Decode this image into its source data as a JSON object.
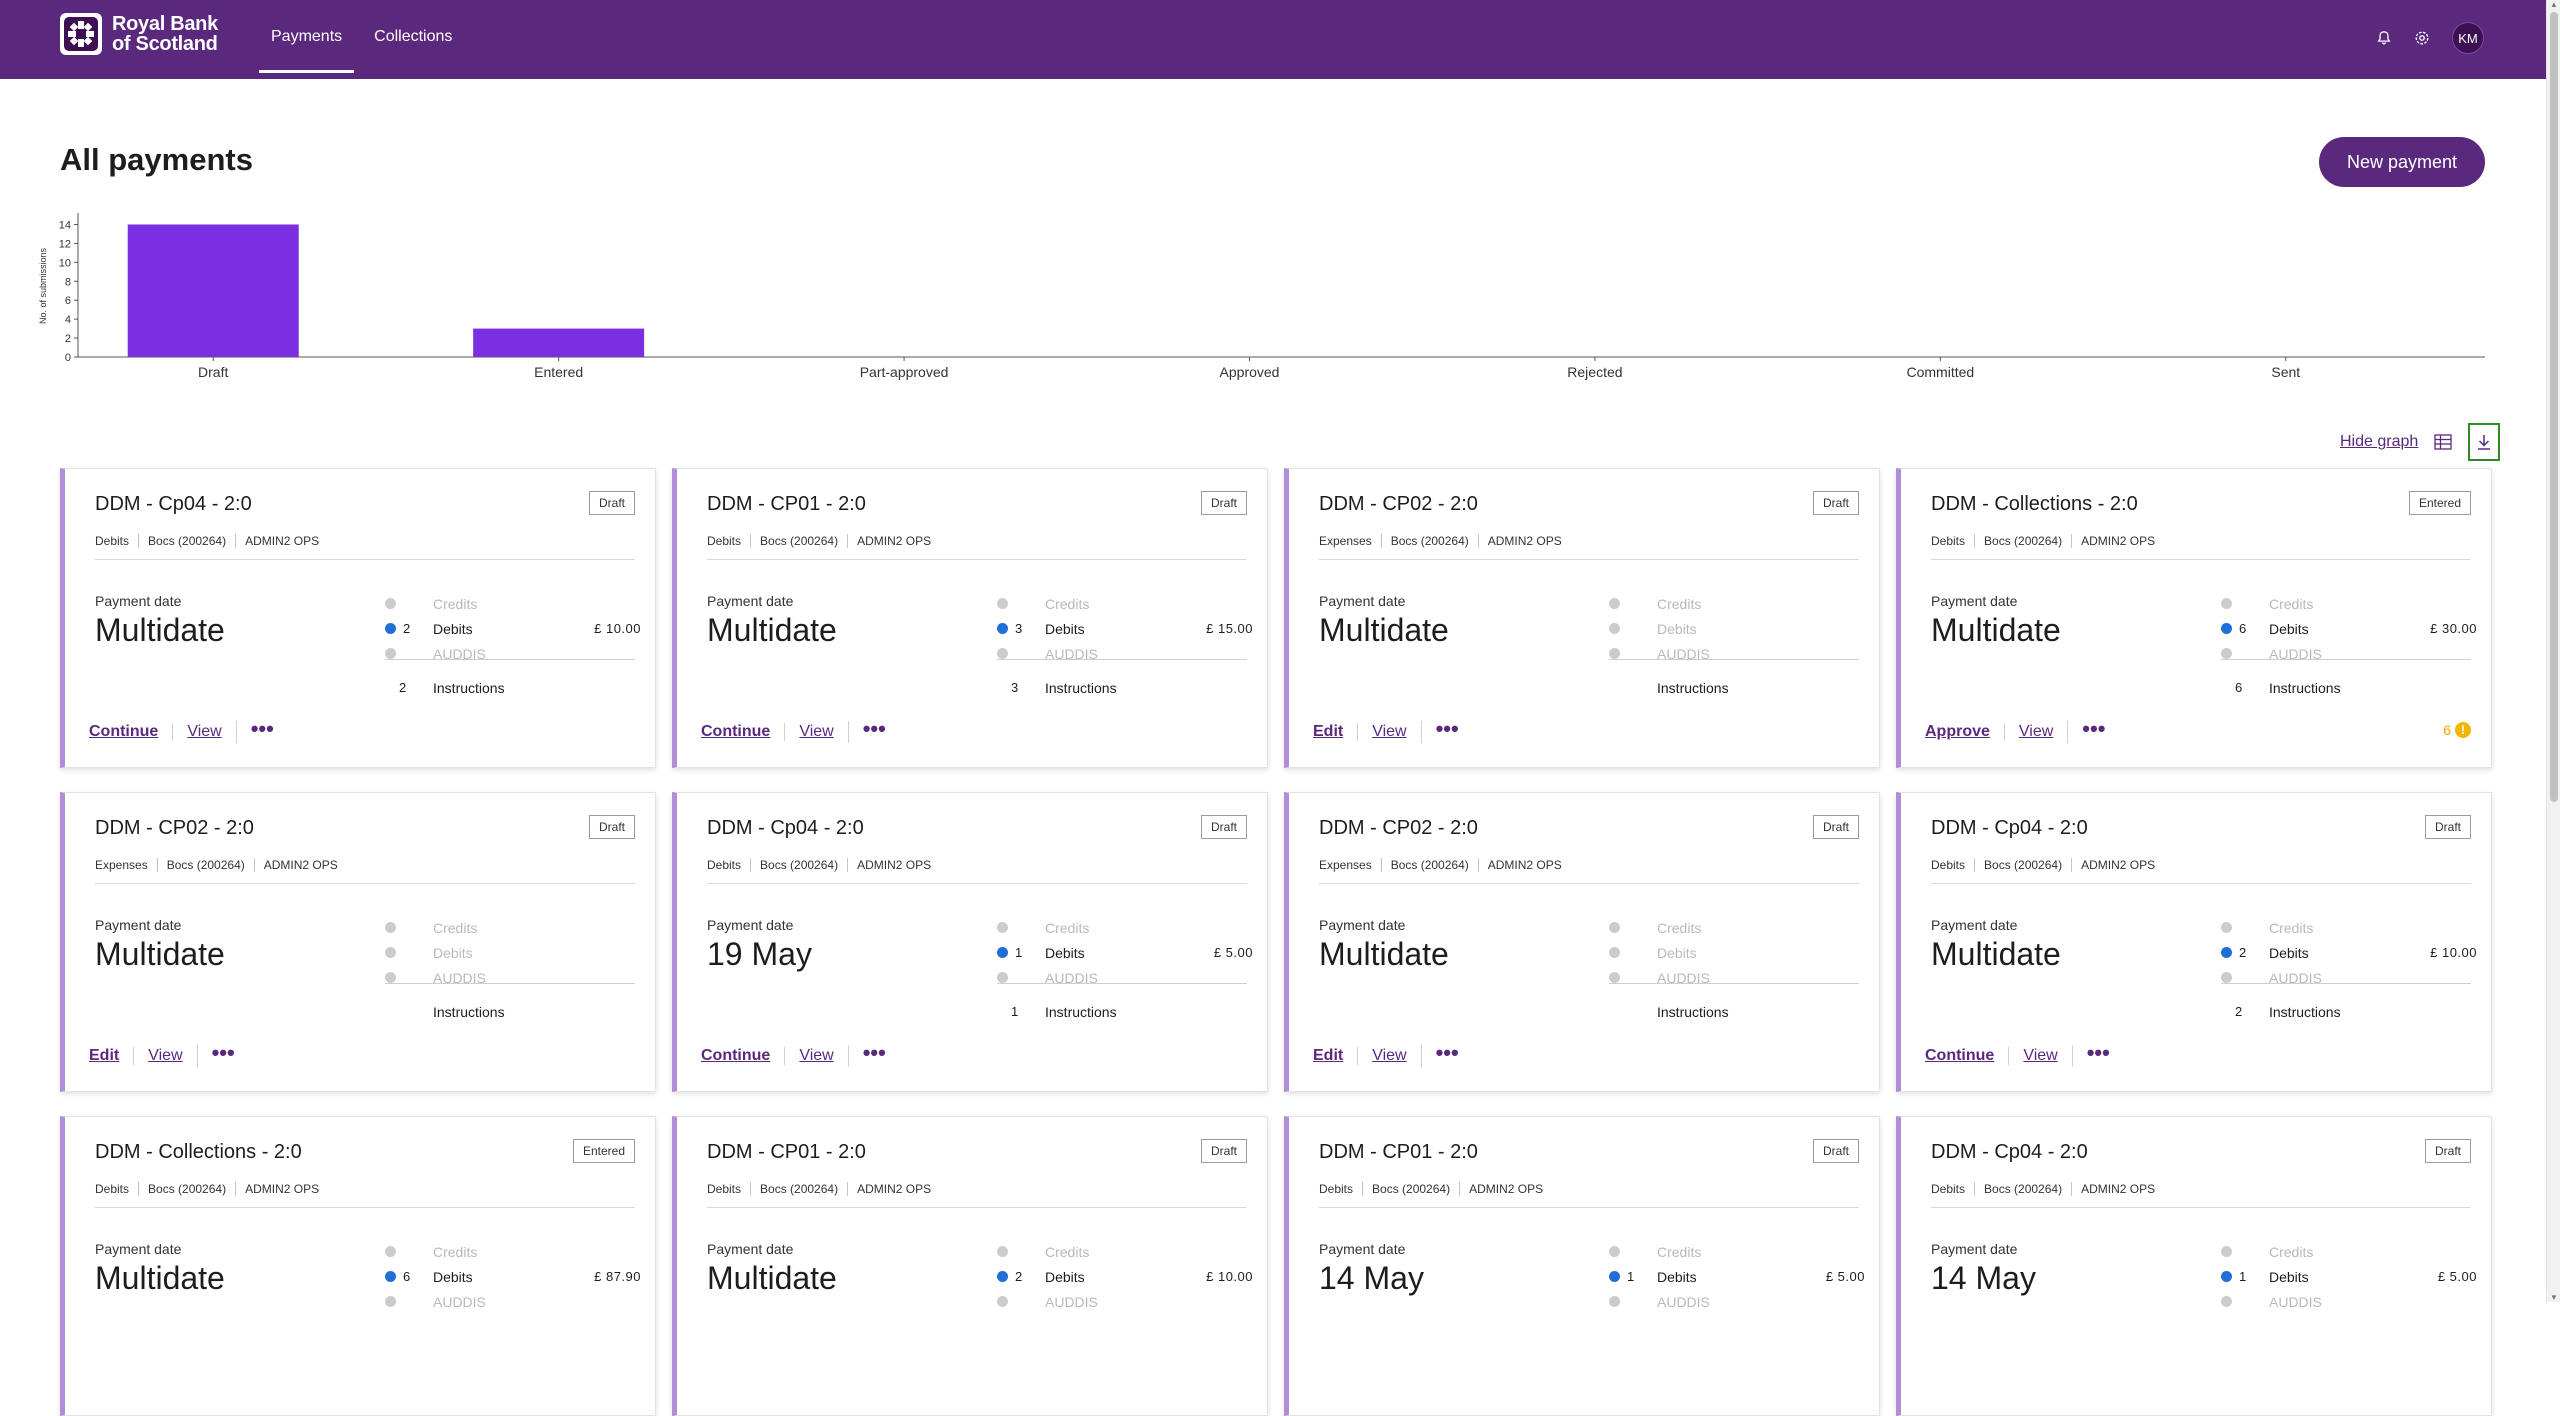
{
  "header": {
    "brand_line1": "Royal Bank",
    "brand_line2": "of Scotland",
    "nav": [
      {
        "label": "Payments"
      },
      {
        "label": "Collections"
      }
    ],
    "avatar_initials": "KM",
    "icons": [
      "bell-icon",
      "settings-icon"
    ]
  },
  "page": {
    "title": "All payments",
    "new_payment_label": "New payment",
    "hide_graph_label": "Hide graph"
  },
  "chart_data": {
    "type": "bar",
    "ylabel": "No. of submissions",
    "categories": [
      "Draft",
      "Entered",
      "Part-approved",
      "Approved",
      "Rejected",
      "Committed",
      "Sent"
    ],
    "values": [
      14,
      3,
      0,
      0,
      0,
      0,
      0
    ],
    "yticks": [
      0,
      2,
      4,
      6,
      8,
      10,
      12,
      14
    ],
    "ylim": [
      0,
      15
    ],
    "bar_color": "#7b2fe0",
    "grid": false
  },
  "labels": {
    "payment_date": "Payment date",
    "credits": "Credits",
    "debits": "Debits",
    "auddis": "AUDDIS",
    "instructions": "Instructions",
    "view": "View",
    "more": "•••"
  },
  "cards": [
    {
      "title": "DDM - Cp04 - 2:0",
      "status": "Draft",
      "type": "Debits",
      "service": "Bocs (200264)",
      "user": "ADMIN2 OPS",
      "date": "Multidate",
      "debits_count": "2",
      "debits_amount": "£ 10.00",
      "debits_on": true,
      "instructions": "2",
      "primary": "Continue",
      "warning": ""
    },
    {
      "title": "DDM - CP01 - 2:0",
      "status": "Draft",
      "type": "Debits",
      "service": "Bocs (200264)",
      "user": "ADMIN2 OPS",
      "date": "Multidate",
      "debits_count": "3",
      "debits_amount": "£ 15.00",
      "debits_on": true,
      "instructions": "3",
      "primary": "Continue",
      "warning": ""
    },
    {
      "title": "DDM - CP02 - 2:0",
      "status": "Draft",
      "type": "Expenses",
      "service": "Bocs (200264)",
      "user": "ADMIN2 OPS",
      "date": "Multidate",
      "debits_count": "",
      "debits_amount": "",
      "debits_on": false,
      "instructions": "",
      "primary": "Edit",
      "warning": ""
    },
    {
      "title": "DDM - Collections - 2:0",
      "status": "Entered",
      "type": "Debits",
      "service": "Bocs (200264)",
      "user": "ADMIN2 OPS",
      "date": "Multidate",
      "debits_count": "6",
      "debits_amount": "£ 30.00",
      "debits_on": true,
      "instructions": "6",
      "primary": "Approve",
      "warning": "6"
    },
    {
      "title": "DDM - CP02 - 2:0",
      "status": "Draft",
      "type": "Expenses",
      "service": "Bocs (200264)",
      "user": "ADMIN2 OPS",
      "date": "Multidate",
      "debits_count": "",
      "debits_amount": "",
      "debits_on": false,
      "instructions": "",
      "primary": "Edit",
      "warning": ""
    },
    {
      "title": "DDM - Cp04 - 2:0",
      "status": "Draft",
      "type": "Debits",
      "service": "Bocs (200264)",
      "user": "ADMIN2 OPS",
      "date": "19 May",
      "debits_count": "1",
      "debits_amount": "£ 5.00",
      "debits_on": true,
      "instructions": "1",
      "primary": "Continue",
      "warning": ""
    },
    {
      "title": "DDM - CP02 - 2:0",
      "status": "Draft",
      "type": "Expenses",
      "service": "Bocs (200264)",
      "user": "ADMIN2 OPS",
      "date": "Multidate",
      "debits_count": "",
      "debits_amount": "",
      "debits_on": false,
      "instructions": "",
      "primary": "Edit",
      "warning": ""
    },
    {
      "title": "DDM - Cp04 - 2:0",
      "status": "Draft",
      "type": "Debits",
      "service": "Bocs (200264)",
      "user": "ADMIN2 OPS",
      "date": "Multidate",
      "debits_count": "2",
      "debits_amount": "£ 10.00",
      "debits_on": true,
      "instructions": "2",
      "primary": "Continue",
      "warning": ""
    },
    {
      "title": "DDM - Collections - 2:0",
      "status": "Entered",
      "type": "Debits",
      "service": "Bocs (200264)",
      "user": "ADMIN2 OPS",
      "date": "Multidate",
      "debits_count": "6",
      "debits_amount": "£ 87.90",
      "debits_on": true,
      "instructions": "",
      "primary": "",
      "warning": ""
    },
    {
      "title": "DDM - CP01 - 2:0",
      "status": "Draft",
      "type": "Debits",
      "service": "Bocs (200264)",
      "user": "ADMIN2 OPS",
      "date": "Multidate",
      "debits_count": "2",
      "debits_amount": "£ 10.00",
      "debits_on": true,
      "instructions": "",
      "primary": "",
      "warning": ""
    },
    {
      "title": "DDM - CP01 - 2:0",
      "status": "Draft",
      "type": "Debits",
      "service": "Bocs (200264)",
      "user": "ADMIN2 OPS",
      "date": "14 May",
      "debits_count": "1",
      "debits_amount": "£ 5.00",
      "debits_on": true,
      "instructions": "",
      "primary": "",
      "warning": ""
    },
    {
      "title": "DDM - Cp04 - 2:0",
      "status": "Draft",
      "type": "Debits",
      "service": "Bocs (200264)",
      "user": "ADMIN2 OPS",
      "date": "14 May",
      "debits_count": "1",
      "debits_amount": "£ 5.00",
      "debits_on": true,
      "instructions": "",
      "primary": "",
      "warning": ""
    }
  ]
}
